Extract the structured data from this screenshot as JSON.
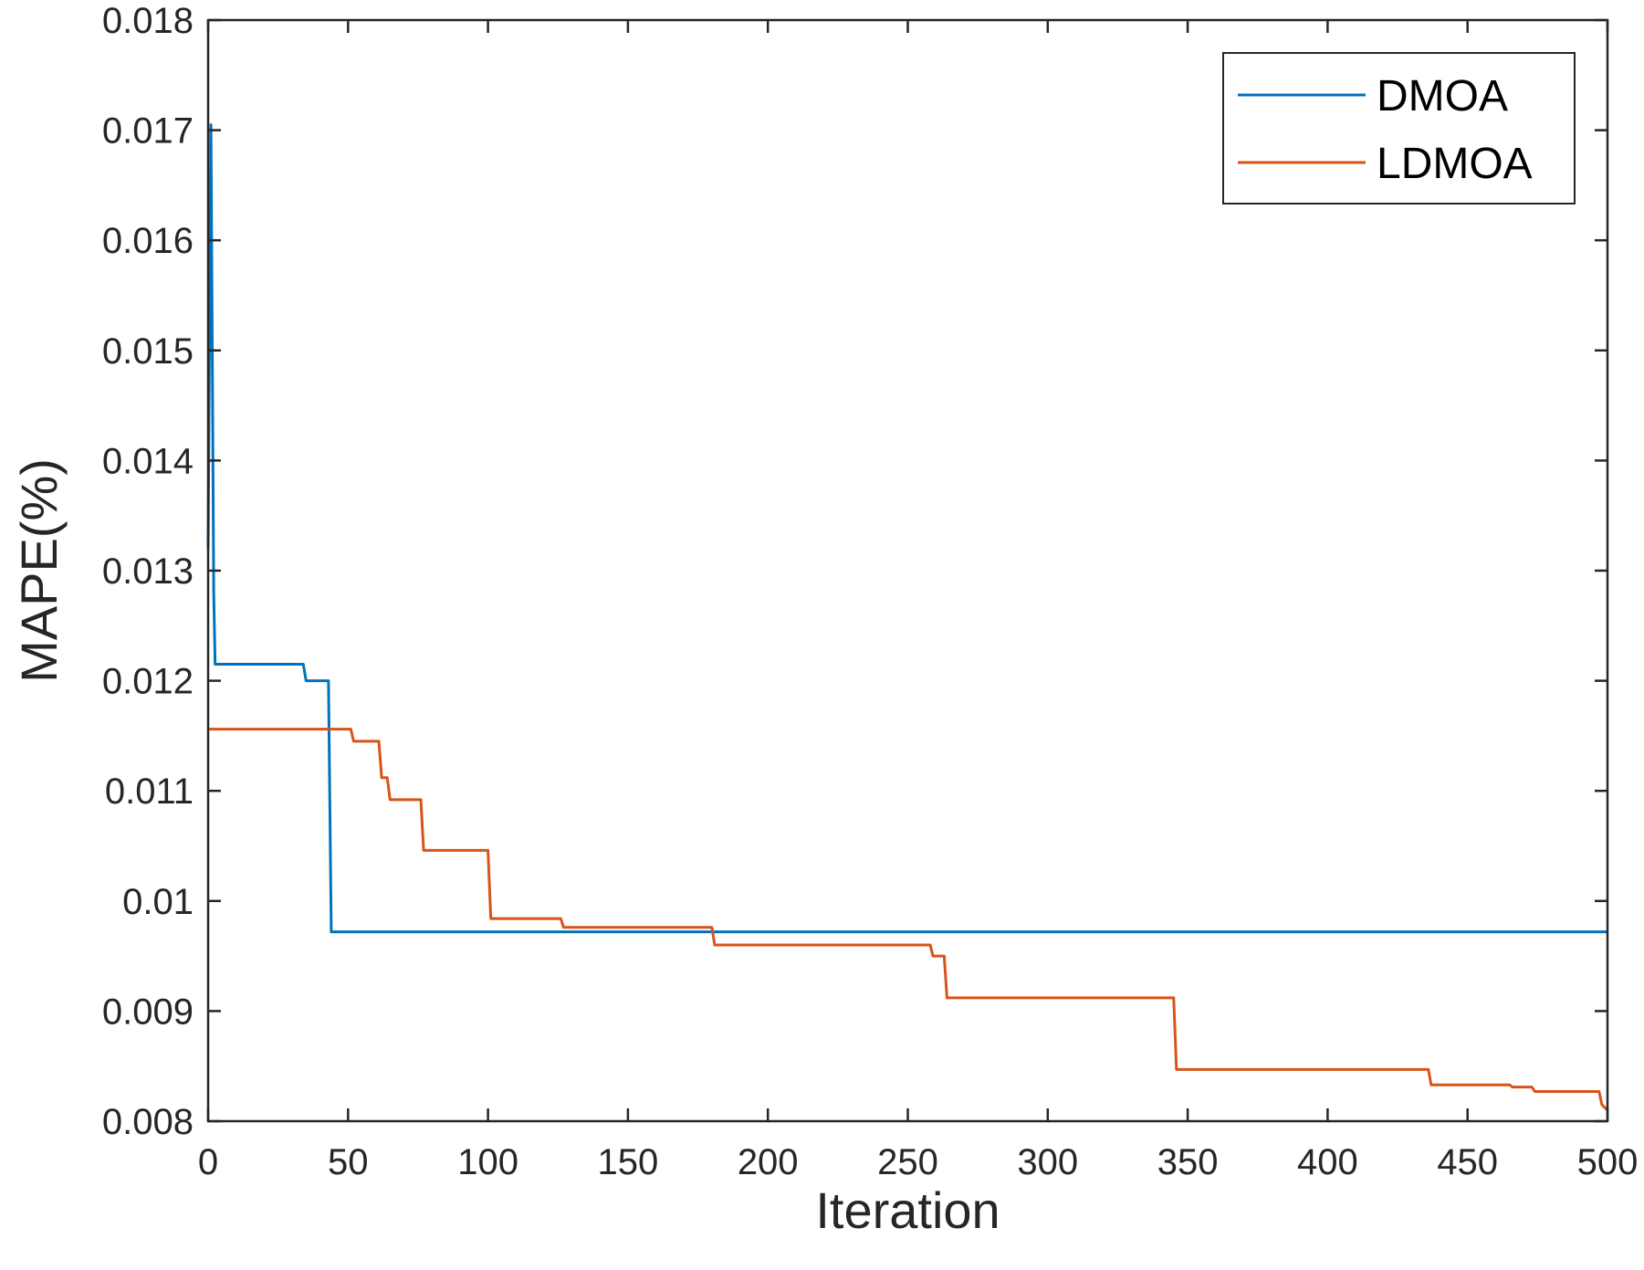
{
  "chart_data": {
    "type": "line",
    "title": "",
    "xlabel": "Iteration",
    "ylabel": "MAPE(%)",
    "xlim": [
      0,
      500
    ],
    "ylim": [
      0.008,
      0.018
    ],
    "xticks": [
      0,
      50,
      100,
      150,
      200,
      250,
      300,
      350,
      400,
      450,
      500
    ],
    "xtick_labels": [
      "0",
      "50",
      "100",
      "150",
      "200",
      "250",
      "300",
      "350",
      "400",
      "450",
      "500"
    ],
    "yticks": [
      0.008,
      0.009,
      0.01,
      0.011,
      0.012,
      0.013,
      0.014,
      0.015,
      0.016,
      0.017,
      0.018
    ],
    "ytick_labels": [
      "0.008",
      "0.009",
      "0.01",
      "0.011",
      "0.012",
      "0.013",
      "0.014",
      "0.015",
      "0.016",
      "0.017",
      "0.018"
    ],
    "grid": false,
    "legend_position": "top-right",
    "series": [
      {
        "name": "DMOA",
        "color": "#0072BD",
        "x": [
          0,
          1,
          1.6,
          2,
          2.5,
          3,
          34,
          35,
          43,
          44,
          500
        ],
        "y": [
          0.0132,
          0.01705,
          0.0145,
          0.0128,
          0.01215,
          0.01215,
          0.01215,
          0.012,
          0.012,
          0.00972,
          0.00972
        ]
      },
      {
        "name": "LDMOA",
        "color": "#D95319",
        "x": [
          0,
          51,
          52,
          61,
          62,
          64,
          65,
          76,
          77,
          100,
          101,
          126,
          127,
          180,
          181,
          258,
          259,
          263,
          264,
          345,
          346,
          436,
          437,
          465,
          466,
          473,
          474,
          497,
          498,
          500
        ],
        "y": [
          0.01156,
          0.01156,
          0.01145,
          0.01145,
          0.01112,
          0.01112,
          0.01092,
          0.01092,
          0.01046,
          0.01046,
          0.00984,
          0.00984,
          0.00976,
          0.00976,
          0.0096,
          0.0096,
          0.0095,
          0.0095,
          0.00912,
          0.00912,
          0.00847,
          0.00847,
          0.00833,
          0.00833,
          0.00831,
          0.00831,
          0.00827,
          0.00827,
          0.00815,
          0.0081
        ]
      }
    ]
  }
}
